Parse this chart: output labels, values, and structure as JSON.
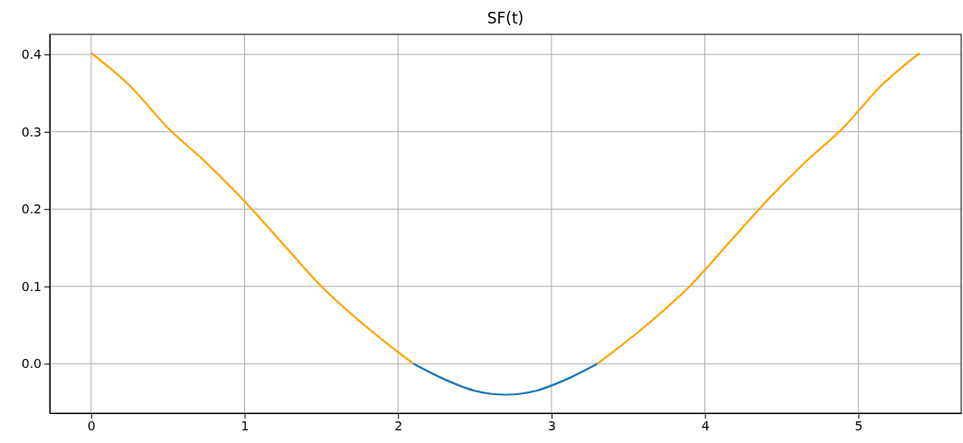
{
  "chart_data": {
    "type": "line",
    "title": "SF(t)",
    "xlim": [
      -0.27,
      5.67
    ],
    "ylim": [
      -0.064,
      0.426
    ],
    "xticks": [
      0,
      1,
      2,
      3,
      4,
      5
    ],
    "yticks": [
      {
        "value": 0,
        "label": "0.0"
      },
      0.1,
      0.2,
      0.3,
      0.4
    ],
    "grid": true,
    "series": [
      {
        "color": "#ffa500",
        "x": [
          0,
          0.25,
          0.5,
          0.75,
          1,
          1.25,
          1.5,
          1.75,
          2,
          2.1
        ],
        "values": [
          0.402,
          0.36,
          0.305,
          0.26,
          0.21,
          0.155,
          0.1,
          0.055,
          0.015,
          0
        ]
      },
      {
        "color": "#1f77b4",
        "x": [
          2.1,
          2.3,
          2.5,
          2.7,
          2.9,
          3.1,
          3.3
        ],
        "values": [
          0,
          -0.02,
          -0.035,
          -0.04,
          -0.035,
          -0.02,
          0
        ]
      },
      {
        "color": "#ffa500",
        "x": [
          3.3,
          3.4,
          3.65,
          3.9,
          4.15,
          4.4,
          4.65,
          4.9,
          5.15,
          5.4
        ],
        "values": [
          0,
          0.015,
          0.055,
          0.1,
          0.155,
          0.21,
          0.26,
          0.305,
          0.36,
          0.402
        ]
      }
    ]
  }
}
